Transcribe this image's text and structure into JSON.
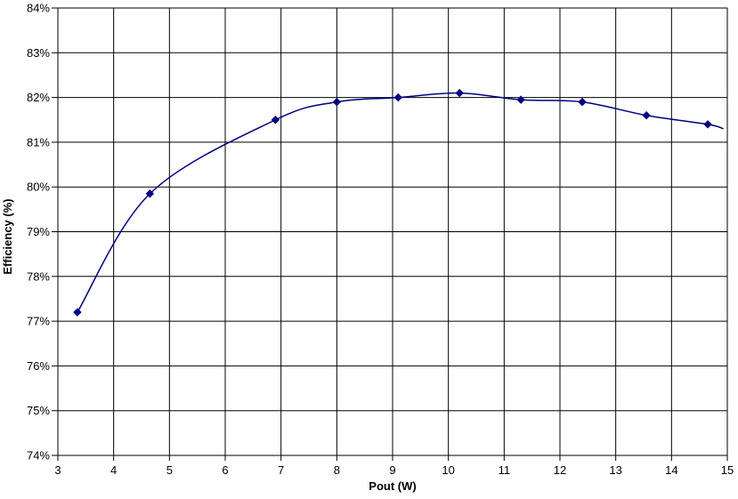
{
  "chart_data": {
    "type": "line",
    "title": "",
    "xlabel": "Pout (W)",
    "ylabel": "Efficiency (%)",
    "xlim": [
      3,
      15
    ],
    "ylim": [
      74,
      84
    ],
    "x_tick_step": 1,
    "y_tick_step": 1,
    "x_tick_labels": [
      "3",
      "4",
      "5",
      "6",
      "7",
      "8",
      "9",
      "10",
      "11",
      "12",
      "13",
      "14",
      "15"
    ],
    "y_tick_labels": [
      "74%",
      "75%",
      "76%",
      "77%",
      "78%",
      "79%",
      "80%",
      "81%",
      "82%",
      "83%",
      "84%"
    ],
    "grid": true,
    "legend_position": "none",
    "line_color": "#000080",
    "grid_color": "#000000",
    "marker": "diamond",
    "marker_size": 4,
    "series": [
      {
        "name": "Efficiency",
        "points": [
          {
            "x": 3.35,
            "y": 77.2
          },
          {
            "x": 4.65,
            "y": 79.85
          },
          {
            "x": 6.9,
            "y": 81.5
          },
          {
            "x": 8.0,
            "y": 81.9
          },
          {
            "x": 9.1,
            "y": 82.0
          },
          {
            "x": 10.2,
            "y": 82.1
          },
          {
            "x": 11.3,
            "y": 81.95
          },
          {
            "x": 12.4,
            "y": 81.9
          },
          {
            "x": 13.55,
            "y": 81.6
          },
          {
            "x": 14.65,
            "y": 81.4
          }
        ],
        "line_end": {
          "x": 14.93,
          "y": 81.3
        }
      }
    ]
  }
}
